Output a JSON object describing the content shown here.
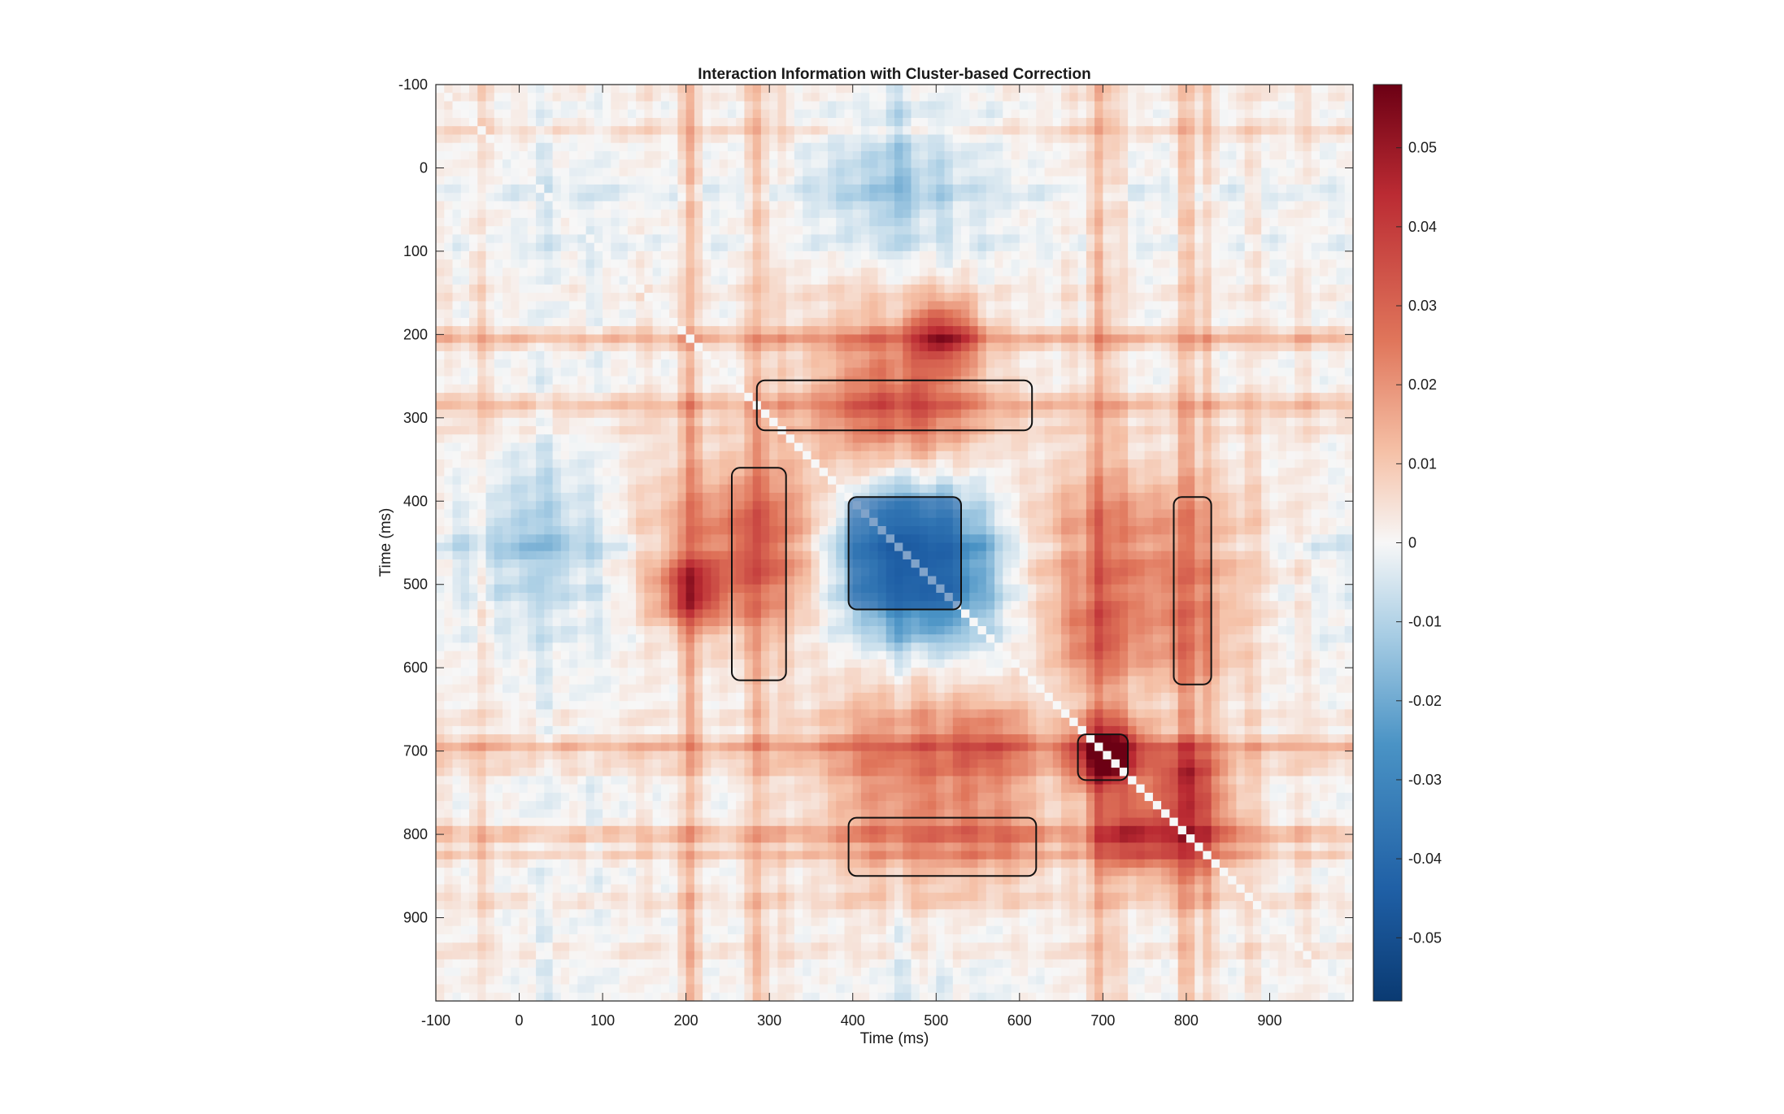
{
  "chart_data": {
    "type": "heatmap",
    "title": "Interaction Information with Cluster-based Correction",
    "xlabel": "Time (ms)",
    "ylabel": "Time (ms)",
    "xlim": [
      -100,
      1000
    ],
    "ylim": [
      -100,
      1000
    ],
    "y_direction": "reversed",
    "x_ticks": [
      -100,
      0,
      100,
      200,
      300,
      400,
      500,
      600,
      700,
      800,
      900
    ],
    "y_ticks": [
      -100,
      0,
      100,
      200,
      300,
      400,
      500,
      600,
      700,
      800,
      900
    ],
    "colorbar": {
      "colormap": "red-white-blue (diverging)",
      "range": [
        -0.058,
        0.058
      ],
      "ticks": [
        -0.05,
        -0.04,
        -0.03,
        -0.02,
        -0.01,
        0,
        0.01,
        0.02,
        0.03,
        0.04,
        0.05
      ],
      "colors": {
        "low": "#0a3a72",
        "mid": "#f7f7f7",
        "high": "#6c0014"
      }
    },
    "structure": "symmetric time-time matrix (train time x test time); diagonal masked white",
    "significant_clusters": [
      {
        "sign": "positive",
        "x_range": [
          285,
          615
        ],
        "y_range": [
          255,
          315
        ]
      },
      {
        "sign": "positive",
        "x_range": [
          255,
          320
        ],
        "y_range": [
          360,
          615
        ]
      },
      {
        "sign": "negative",
        "x_range": [
          395,
          530
        ],
        "y_range": [
          395,
          530
        ]
      },
      {
        "sign": "positive",
        "x_range": [
          785,
          830
        ],
        "y_range": [
          395,
          620
        ]
      },
      {
        "sign": "positive",
        "x_range": [
          395,
          620
        ],
        "y_range": [
          780,
          850
        ]
      },
      {
        "sign": "positive",
        "x_range": [
          670,
          730
        ],
        "y_range": [
          680,
          735
        ]
      }
    ]
  },
  "axis": {
    "x_tick_labels": [
      "-100",
      "0",
      "100",
      "200",
      "300",
      "400",
      "500",
      "600",
      "700",
      "800",
      "900"
    ],
    "y_tick_labels": [
      "-100",
      "0",
      "100",
      "200",
      "300",
      "400",
      "500",
      "600",
      "700",
      "800",
      "900"
    ]
  },
  "colorbar_tick_labels": [
    "-0.05",
    "-0.04",
    "-0.03",
    "-0.02",
    "-0.01",
    "0",
    "0.01",
    "0.02",
    "0.03",
    "0.04",
    "0.05"
  ]
}
